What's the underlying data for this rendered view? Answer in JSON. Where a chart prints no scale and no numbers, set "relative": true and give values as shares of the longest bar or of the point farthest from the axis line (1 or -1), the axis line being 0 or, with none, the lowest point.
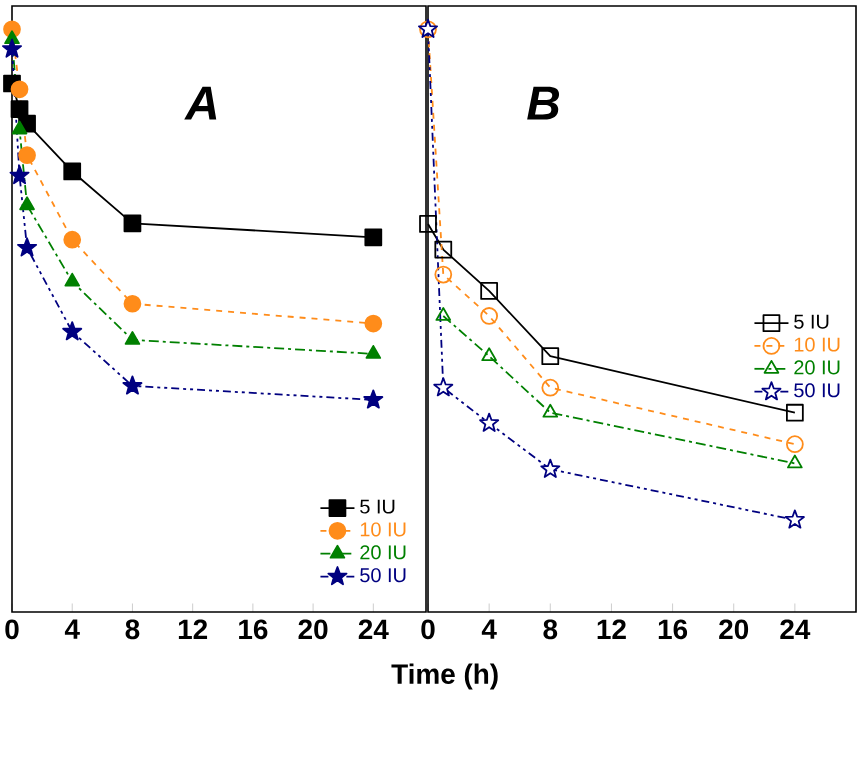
{
  "chart_data": [
    {
      "type": "line",
      "title": "A",
      "relative": true,
      "xlim": [
        0,
        27.5
      ],
      "xticks": [
        0,
        4,
        8,
        12,
        16,
        20,
        24
      ],
      "tick_labels": "x",
      "legend": "bottom right",
      "x": [
        0,
        0.5,
        1,
        4,
        8,
        24
      ],
      "series": [
        {
          "name": "5 IU",
          "color": "#000000",
          "marker": "square",
          "line_style": "solid",
          "values": [
            0.907,
            0.863,
            0.838,
            0.756,
            0.667,
            0.643
          ]
        },
        {
          "name": "10 IU",
          "color": "#ff8c1a",
          "marker": "circle",
          "line_style": "dashed",
          "values": [
            1.0,
            0.897,
            0.784,
            0.639,
            0.529,
            0.495
          ]
        },
        {
          "name": "20 IU",
          "color": "#008000",
          "marker": "triangle",
          "line_style": "dashdotted",
          "values": [
            0.983,
            0.828,
            0.698,
            0.567,
            0.467,
            0.443
          ]
        },
        {
          "name": "50 IU",
          "color": "#000080",
          "marker": "star",
          "line_style": "dashdotdotted",
          "values": [
            0.966,
            0.749,
            0.625,
            0.481,
            0.388,
            0.364
          ]
        }
      ]
    },
    {
      "type": "line",
      "title": "B",
      "xlabel": "Time (h)",
      "relative": true,
      "xlim": [
        0,
        28
      ],
      "xticks": [
        0,
        4,
        8,
        12,
        16,
        20,
        24
      ],
      "tick_labels": "x",
      "legend": "right",
      "x": [
        0,
        1,
        4,
        8,
        24
      ],
      "series": [
        {
          "name": "5 IU",
          "color": "#000000",
          "marker": "square",
          "line_style": "solid",
          "values": [
            0.666,
            0.622,
            0.551,
            0.439,
            0.342
          ]
        },
        {
          "name": "10 IU",
          "color": "#ff8c1a",
          "marker": "circle",
          "line_style": "dashed",
          "values": [
            1.0,
            0.579,
            0.508,
            0.385,
            0.288
          ]
        },
        {
          "name": "20 IU",
          "color": "#008000",
          "marker": "triangle",
          "line_style": "dashdotted",
          "values": [
            null,
            0.508,
            0.439,
            0.342,
            0.255
          ]
        },
        {
          "name": "50 IU",
          "color": "#000080",
          "marker": "star",
          "line_style": "dashdotdotted",
          "values": [
            1.0,
            0.385,
            0.324,
            0.245,
            0.158
          ]
        }
      ]
    }
  ]
}
